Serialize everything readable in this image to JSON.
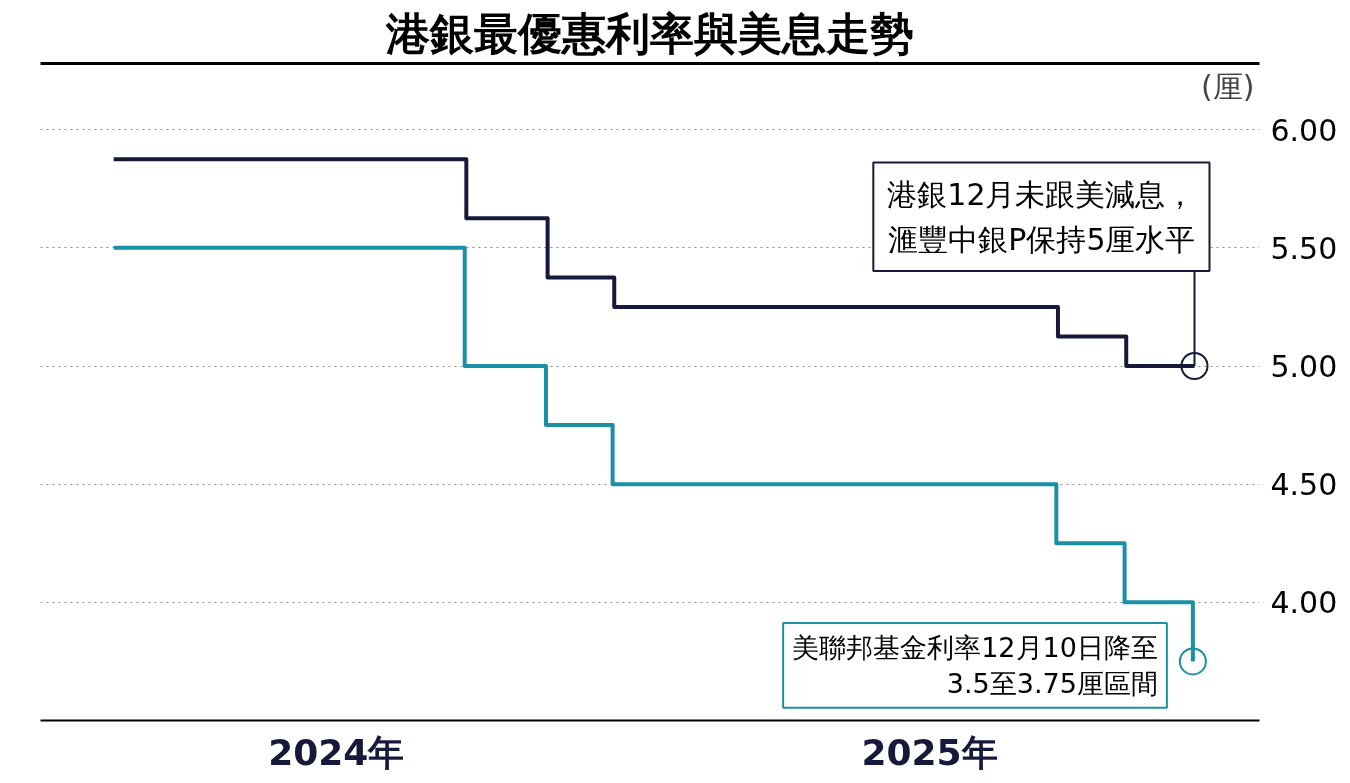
{
  "chart_data": {
    "type": "step",
    "title": "港銀最優惠利率與美息走勢",
    "ylabel": "(厘)",
    "xlim": [
      "2024-01-01",
      "2026-01-20"
    ],
    "xticks": [
      {
        "value": "2024-07-01",
        "label": "2024年"
      },
      {
        "value": "2025-07-01",
        "label": "2025年"
      }
    ],
    "ylim": [
      3.5,
      6.28
    ],
    "yticks": [
      {
        "value": 4,
        "label": "4.00"
      },
      {
        "value": 4.5,
        "label": "4.50"
      },
      {
        "value": 5,
        "label": "5.00"
      },
      {
        "value": 5.5,
        "label": "5.50"
      },
      {
        "value": 6,
        "label": "6.00"
      }
    ],
    "grid": "y",
    "line_style": "solid",
    "series": [
      {
        "color": "#161a3a",
        "x": [
          "2024-02-15",
          "2024-09-19",
          "2024-11-08",
          "2024-12-19",
          "2025-09-18",
          "2025-10-30",
          "2025-12-11"
        ],
        "values": [
          5.875,
          5.625,
          5.375,
          5.25,
          5.125,
          5.0,
          5.0
        ]
      },
      {
        "color": "#1a8fa6",
        "x": [
          "2024-02-15",
          "2024-09-18",
          "2024-11-07",
          "2024-12-18",
          "2025-09-17",
          "2025-10-29",
          "2025-12-10"
        ],
        "values": [
          5.5,
          5.0,
          4.75,
          4.5,
          4.25,
          4.0,
          3.75
        ]
      }
    ],
    "annotations": [
      {
        "text": "港銀12月未跟美減息，滙豐中銀P保持5厘水平",
        "x": "2025-12-11",
        "y": 5.0
      },
      {
        "text": "美聯邦基金利率12月10日降至3.5至3.75厘區間",
        "x": "2025-12-10",
        "y": 3.75
      }
    ]
  }
}
